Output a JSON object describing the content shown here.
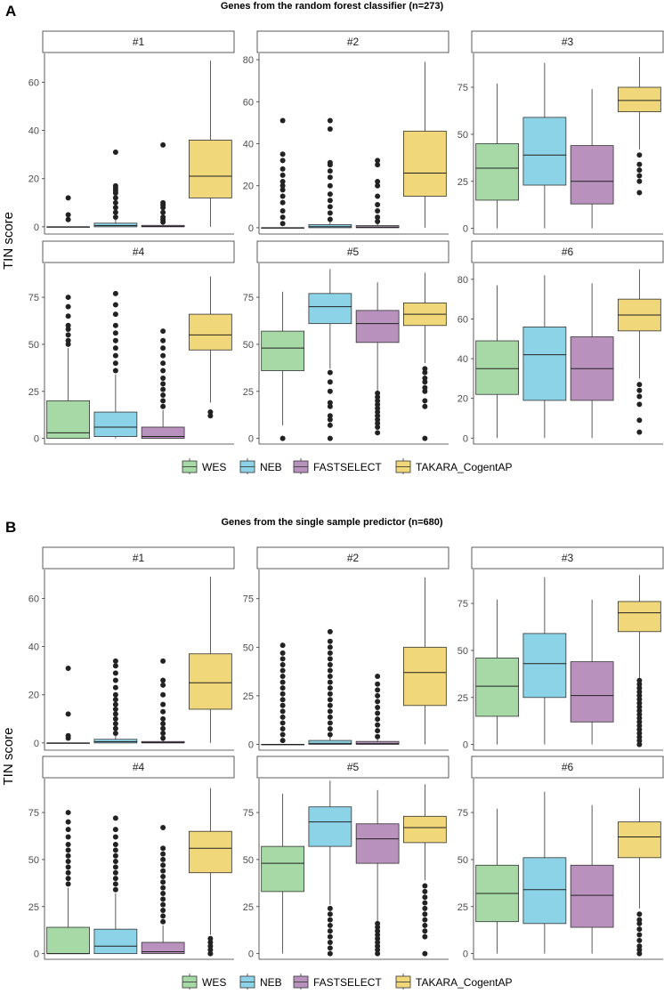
{
  "legend": {
    "items": [
      {
        "label": "WES",
        "color": "#a6d9a6"
      },
      {
        "label": "NEB",
        "color": "#8dd3e7"
      },
      {
        "label": "FASTSELECT",
        "color": "#b891bd"
      },
      {
        "label": "TAKARA_CogentAP",
        "color": "#f0d77a"
      }
    ]
  },
  "y_axis_label": "TIN score",
  "chart_data": [
    {
      "panel_label": "A",
      "title": "Genes from the random forest classifier (n=273)",
      "type": "box",
      "groups": [
        "WES",
        "NEB",
        "FASTSELECT",
        "TAKARA_CogentAP"
      ],
      "facets": [
        {
          "name": "#1",
          "ylim": [
            -3,
            72
          ],
          "yticks": [
            0,
            20,
            40,
            60
          ],
          "boxes": [
            {
              "q1": 0,
              "median": 0,
              "q3": 0,
              "whisker_low": 0,
              "whisker_high": 0,
              "outliers": [
                3,
                5,
                12
              ]
            },
            {
              "q1": 0,
              "median": 0.5,
              "q3": 1.5,
              "whisker_low": 0,
              "whisker_high": 3,
              "outliers": [
                4,
                6,
                8,
                10,
                12,
                14,
                15,
                16,
                17,
                31
              ]
            },
            {
              "q1": 0,
              "median": 0.2,
              "q3": 0.6,
              "whisker_low": 0,
              "whisker_high": 1.5,
              "outliers": [
                2,
                3,
                4,
                6,
                8,
                9,
                10,
                34
              ]
            },
            {
              "q1": 12,
              "median": 21,
              "q3": 36,
              "whisker_low": 0,
              "whisker_high": 69,
              "outliers": []
            }
          ]
        },
        {
          "name": "#2",
          "ylim": [
            -3,
            83
          ],
          "yticks": [
            0,
            20,
            40,
            60,
            80
          ],
          "boxes": [
            {
              "q1": 0,
              "median": 0,
              "q3": 0,
              "whisker_low": 0,
              "whisker_high": 0,
              "outliers": [
                2,
                5,
                8,
                12,
                15,
                18,
                20,
                22,
                25,
                28,
                32,
                35,
                51
              ]
            },
            {
              "q1": 0,
              "median": 0.5,
              "q3": 1.5,
              "whisker_low": 0,
              "whisker_high": 3,
              "outliers": [
                4,
                7,
                10,
                13,
                16,
                20,
                24,
                27,
                30,
                31,
                47,
                51
              ]
            },
            {
              "q1": 0,
              "median": 0.3,
              "q3": 1,
              "whisker_low": 0,
              "whisker_high": 2,
              "outliers": [
                3,
                5,
                8,
                11,
                15,
                20,
                22,
                30,
                32
              ]
            },
            {
              "q1": 15,
              "median": 26,
              "q3": 46,
              "whisker_low": 0,
              "whisker_high": 79,
              "outliers": []
            }
          ]
        },
        {
          "name": "#3",
          "ylim": [
            -3,
            93
          ],
          "yticks": [
            0,
            25,
            50,
            75
          ],
          "boxes": [
            {
              "q1": 15,
              "median": 32,
              "q3": 45,
              "whisker_low": 0,
              "whisker_high": 77,
              "outliers": []
            },
            {
              "q1": 23,
              "median": 39,
              "q3": 59,
              "whisker_low": 0,
              "whisker_high": 88,
              "outliers": []
            },
            {
              "q1": 13,
              "median": 25,
              "q3": 44,
              "whisker_low": 0,
              "whisker_high": 74,
              "outliers": []
            },
            {
              "q1": 62,
              "median": 68,
              "q3": 75,
              "whisker_low": 42,
              "whisker_high": 91,
              "outliers": [
                19,
                25,
                28,
                31,
                34,
                39
              ]
            }
          ]
        },
        {
          "name": "#4",
          "ylim": [
            -3,
            93
          ],
          "yticks": [
            0,
            25,
            50,
            75
          ],
          "boxes": [
            {
              "q1": 0,
              "median": 3,
              "q3": 20,
              "whisker_low": 0,
              "whisker_high": 48,
              "outliers": [
                50,
                52,
                55,
                58,
                60,
                65,
                70,
                75
              ]
            },
            {
              "q1": 1,
              "median": 6,
              "q3": 14,
              "whisker_low": 0,
              "whisker_high": 34,
              "outliers": [
                36,
                40,
                44,
                48,
                52,
                56,
                60,
                66,
                71,
                77
              ]
            },
            {
              "q1": 0,
              "median": 1,
              "q3": 6,
              "whisker_low": 0,
              "whisker_high": 15,
              "outliers": [
                17,
                20,
                23,
                26,
                29,
                32,
                36,
                40,
                44,
                48,
                52,
                57
              ]
            },
            {
              "q1": 47,
              "median": 55,
              "q3": 66,
              "whisker_low": 19,
              "whisker_high": 86,
              "outliers": [
                12,
                14
              ]
            }
          ]
        },
        {
          "name": "#5",
          "ylim": [
            -3,
            93
          ],
          "yticks": [
            0,
            25,
            50,
            75
          ],
          "boxes": [
            {
              "q1": 36,
              "median": 48,
              "q3": 57,
              "whisker_low": 7,
              "whisker_high": 78,
              "outliers": [
                0
              ]
            },
            {
              "q1": 61,
              "median": 70,
              "q3": 77,
              "whisker_low": 37,
              "whisker_high": 90,
              "outliers": [
                0,
                7,
                10,
                12,
                17,
                19,
                25,
                30,
                35
              ]
            },
            {
              "q1": 51,
              "median": 61,
              "q3": 68,
              "whisker_low": 25,
              "whisker_high": 83,
              "outliers": [
                3,
                6,
                8,
                10,
                12,
                14,
                16,
                18,
                20,
                22,
                24
              ]
            },
            {
              "q1": 60,
              "median": 66,
              "q3": 72,
              "whisker_low": 40,
              "whisker_high": 88,
              "outliers": [
                0,
                17,
                20,
                25,
                27,
                30,
                32,
                35,
                37
              ]
            }
          ]
        },
        {
          "name": "#6",
          "ylim": [
            -3,
            88
          ],
          "yticks": [
            0,
            20,
            40,
            60,
            80
          ],
          "boxes": [
            {
              "q1": 22,
              "median": 35,
              "q3": 49,
              "whisker_low": 0,
              "whisker_high": 77,
              "outliers": []
            },
            {
              "q1": 19,
              "median": 42,
              "q3": 56,
              "whisker_low": 0,
              "whisker_high": 82,
              "outliers": []
            },
            {
              "q1": 19,
              "median": 35,
              "q3": 51,
              "whisker_low": 0,
              "whisker_high": 78,
              "outliers": []
            },
            {
              "q1": 54,
              "median": 62,
              "q3": 70,
              "whisker_low": 30,
              "whisker_high": 85,
              "outliers": [
                3,
                9,
                17,
                21,
                24,
                27
              ]
            }
          ]
        }
      ]
    },
    {
      "panel_label": "B",
      "title": "Genes from the single sample predictor (n=680)",
      "type": "box",
      "groups": [
        "WES",
        "NEB",
        "FASTSELECT",
        "TAKARA_CogentAP"
      ],
      "facets": [
        {
          "name": "#1",
          "ylim": [
            -3,
            72
          ],
          "yticks": [
            0,
            20,
            40,
            60
          ],
          "boxes": [
            {
              "q1": 0,
              "median": 0,
              "q3": 0,
              "whisker_low": 0,
              "whisker_high": 0,
              "outliers": [
                2,
                3,
                12,
                31
              ]
            },
            {
              "q1": 0,
              "median": 0.5,
              "q3": 1.5,
              "whisker_low": 0,
              "whisker_high": 3,
              "outliers": [
                4,
                6,
                8,
                10,
                12,
                14,
                16,
                18,
                20,
                23,
                26,
                29,
                32,
                34
              ]
            },
            {
              "q1": 0,
              "median": 0.2,
              "q3": 0.6,
              "whisker_low": 0,
              "whisker_high": 1.5,
              "outliers": [
                2,
                4,
                6,
                8,
                10,
                13,
                16,
                20,
                24,
                26,
                34
              ]
            },
            {
              "q1": 14,
              "median": 25,
              "q3": 37,
              "whisker_low": 0,
              "whisker_high": 69,
              "outliers": []
            }
          ]
        },
        {
          "name": "#2",
          "ylim": [
            -3,
            90
          ],
          "yticks": [
            0,
            25,
            50,
            75
          ],
          "boxes": [
            {
              "q1": 0,
              "median": 0,
              "q3": 0,
              "whisker_low": 0,
              "whisker_high": 0,
              "outliers": [
                2,
                5,
                8,
                11,
                14,
                17,
                20,
                23,
                26,
                29,
                32,
                35,
                38,
                41,
                44,
                47,
                51
              ]
            },
            {
              "q1": 0,
              "median": 0.5,
              "q3": 2,
              "whisker_low": 0,
              "whisker_high": 4,
              "outliers": [
                5,
                8,
                11,
                14,
                17,
                20,
                23,
                26,
                29,
                32,
                35,
                38,
                41,
                44,
                47,
                50,
                53,
                58
              ]
            },
            {
              "q1": 0,
              "median": 0.4,
              "q3": 1.5,
              "whisker_low": 0,
              "whisker_high": 3,
              "outliers": [
                4,
                7,
                10,
                13,
                16,
                19,
                22,
                25,
                28,
                31,
                35
              ]
            },
            {
              "q1": 20,
              "median": 37,
              "q3": 50,
              "whisker_low": 0,
              "whisker_high": 86,
              "outliers": []
            }
          ]
        },
        {
          "name": "#3",
          "ylim": [
            -3,
            93
          ],
          "yticks": [
            0,
            25,
            50,
            75
          ],
          "boxes": [
            {
              "q1": 15,
              "median": 31,
              "q3": 46,
              "whisker_low": 0,
              "whisker_high": 77,
              "outliers": []
            },
            {
              "q1": 25,
              "median": 43,
              "q3": 59,
              "whisker_low": 0,
              "whisker_high": 89,
              "outliers": []
            },
            {
              "q1": 12,
              "median": 26,
              "q3": 44,
              "whisker_low": 0,
              "whisker_high": 77,
              "outliers": []
            },
            {
              "q1": 60,
              "median": 70,
              "q3": 76,
              "whisker_low": 35,
              "whisker_high": 90,
              "outliers": [
                0,
                2,
                4,
                6,
                8,
                10,
                12,
                14,
                16,
                18,
                20,
                22,
                24,
                26,
                28,
                30,
                32,
                34
              ]
            }
          ]
        },
        {
          "name": "#4",
          "ylim": [
            -3,
            93
          ],
          "yticks": [
            0,
            25,
            50,
            75
          ],
          "boxes": [
            {
              "q1": 0,
              "median": 0,
              "q3": 14,
              "whisker_low": 0,
              "whisker_high": 35,
              "outliers": [
                37,
                40,
                43,
                46,
                49,
                52,
                55,
                58,
                62,
                66,
                70,
                75
              ]
            },
            {
              "q1": 0,
              "median": 4,
              "q3": 13,
              "whisker_low": 0,
              "whisker_high": 32,
              "outliers": [
                34,
                37,
                40,
                43,
                46,
                49,
                52,
                55,
                58,
                62,
                66,
                72
              ]
            },
            {
              "q1": 0,
              "median": 1,
              "q3": 6,
              "whisker_low": 0,
              "whisker_high": 15,
              "outliers": [
                17,
                20,
                23,
                26,
                29,
                32,
                35,
                38,
                41,
                44,
                47,
                50,
                53,
                56,
                67
              ]
            },
            {
              "q1": 43,
              "median": 56,
              "q3": 65,
              "whisker_low": 10,
              "whisker_high": 88,
              "outliers": [
                0,
                2,
                4,
                6,
                8
              ]
            }
          ]
        },
        {
          "name": "#5",
          "ylim": [
            -3,
            93
          ],
          "yticks": [
            0,
            25,
            50,
            75
          ],
          "boxes": [
            {
              "q1": 33,
              "median": 48,
              "q3": 57,
              "whisker_low": 0,
              "whisker_high": 85,
              "outliers": []
            },
            {
              "q1": 57,
              "median": 70,
              "q3": 78,
              "whisker_low": 26,
              "whisker_high": 92,
              "outliers": [
                0,
                3,
                6,
                9,
                12,
                15,
                18,
                21,
                24
              ]
            },
            {
              "q1": 48,
              "median": 61,
              "q3": 69,
              "whisker_low": 17,
              "whisker_high": 87,
              "outliers": [
                0,
                2,
                4,
                6,
                8,
                10,
                12,
                14,
                16
              ]
            },
            {
              "q1": 59,
              "median": 67,
              "q3": 73,
              "whisker_low": 39,
              "whisker_high": 90,
              "outliers": [
                0,
                9,
                12,
                15,
                18,
                21,
                24,
                27,
                30,
                33,
                36
              ]
            }
          ]
        },
        {
          "name": "#6",
          "ylim": [
            -3,
            93
          ],
          "yticks": [
            0,
            25,
            50,
            75
          ],
          "boxes": [
            {
              "q1": 17,
              "median": 32,
              "q3": 47,
              "whisker_low": 0,
              "whisker_high": 77,
              "outliers": []
            },
            {
              "q1": 16,
              "median": 34,
              "q3": 51,
              "whisker_low": 0,
              "whisker_high": 86,
              "outliers": []
            },
            {
              "q1": 14,
              "median": 31,
              "q3": 47,
              "whisker_low": 0,
              "whisker_high": 79,
              "outliers": []
            },
            {
              "q1": 51,
              "median": 62,
              "q3": 70,
              "whisker_low": 24,
              "whisker_high": 88,
              "outliers": [
                0,
                2,
                4,
                7,
                10,
                13,
                16,
                18,
                21
              ]
            }
          ]
        }
      ]
    }
  ]
}
